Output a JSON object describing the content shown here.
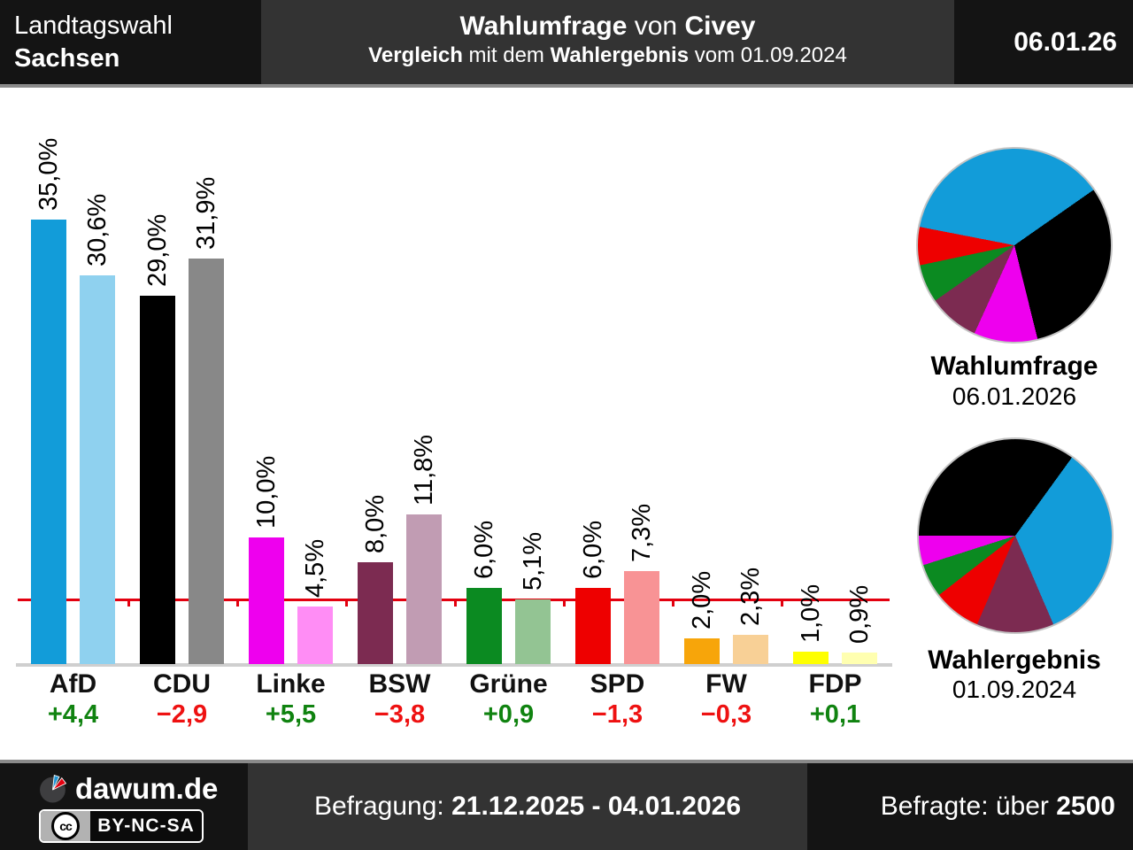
{
  "header": {
    "region": "Landtagswahl",
    "state": "Sachsen",
    "title_parts": [
      "Wahlumfrage",
      " von ",
      "Civey"
    ],
    "subtitle_parts": [
      "Vergleich",
      " mit dem ",
      "Wahlergebnis",
      " vom 01.09.2024"
    ],
    "date": "06.01.26"
  },
  "footer": {
    "brand": "dawum.de",
    "cc_initials": "cc",
    "license": "BY-NC-SA",
    "survey_label": "Befragung: ",
    "survey_period": "21.12.2025 - 04.01.2026",
    "respondents_label": "Befragte: über ",
    "respondents_value": "2500"
  },
  "colors": {
    "diff_up": "#108310",
    "diff_down": "#ee1111",
    "threshold_red": "#e3000f",
    "axis_gray": "#cfcfcf",
    "separator_gray": "#8a8a8a",
    "panel_dark": "#141414",
    "panel_mid": "#333333"
  },
  "chart_data": [
    {
      "type": "bar",
      "categories": [
        "AfD",
        "CDU",
        "Linke",
        "BSW",
        "Grüne",
        "SPD",
        "FW",
        "FDP"
      ],
      "series": [
        {
          "name": "Wahlumfrage 06.01.2026",
          "values": [
            35.0,
            29.0,
            10.0,
            8.0,
            6.0,
            6.0,
            2.0,
            1.0
          ],
          "colors": [
            "#129cd9",
            "#000000",
            "#ee00ee",
            "#7c2b51",
            "#0b8a21",
            "#ee0000",
            "#f7a50a",
            "#feff00"
          ]
        },
        {
          "name": "Wahlergebnis 01.09.2024",
          "values": [
            30.6,
            31.9,
            4.5,
            11.8,
            5.1,
            7.3,
            2.3,
            0.9
          ],
          "colors": [
            "#8fd1ef",
            "#888888",
            "#ff8df5",
            "#c19cb3",
            "#93c493",
            "#f89395",
            "#f8d096",
            "#ffffb0"
          ]
        }
      ],
      "diffs": [
        "+4,4",
        "−2,9",
        "+5,5",
        "−3,8",
        "+0,9",
        "−1,3",
        "−0,3",
        "+0,1"
      ],
      "diff_signs": [
        "up",
        "down",
        "up",
        "down",
        "up",
        "down",
        "down",
        "up"
      ],
      "threshold": {
        "value": 5.0,
        "color": "#e3000f"
      },
      "value_suffix": "%",
      "ylim": [
        0,
        36
      ],
      "grid": false
    },
    {
      "type": "pie",
      "title": "Wahlumfrage",
      "subtitle": "06.01.2026",
      "start_angle": 281,
      "slices": [
        {
          "label": "AfD",
          "value": 35.0,
          "color": "#129cd9"
        },
        {
          "label": "CDU",
          "value": 29.0,
          "color": "#000000"
        },
        {
          "label": "Linke",
          "value": 10.0,
          "color": "#ee00ee"
        },
        {
          "label": "BSW",
          "value": 8.0,
          "color": "#7c2b51"
        },
        {
          "label": "Grüne",
          "value": 6.0,
          "color": "#0b8a21"
        },
        {
          "label": "SPD",
          "value": 6.0,
          "color": "#ee0000"
        }
      ]
    },
    {
      "type": "pie",
      "title": "Wahlergebnis",
      "subtitle": "01.09.2024",
      "start_angle": 270,
      "slices": [
        {
          "label": "CDU",
          "value": 31.9,
          "color": "#000000"
        },
        {
          "label": "AfD",
          "value": 30.6,
          "color": "#129cd9"
        },
        {
          "label": "BSW",
          "value": 11.8,
          "color": "#7c2b51"
        },
        {
          "label": "SPD",
          "value": 7.3,
          "color": "#ee0000"
        },
        {
          "label": "Grüne",
          "value": 5.1,
          "color": "#0b8a21"
        },
        {
          "label": "Linke",
          "value": 4.5,
          "color": "#ee00ee"
        }
      ]
    }
  ]
}
